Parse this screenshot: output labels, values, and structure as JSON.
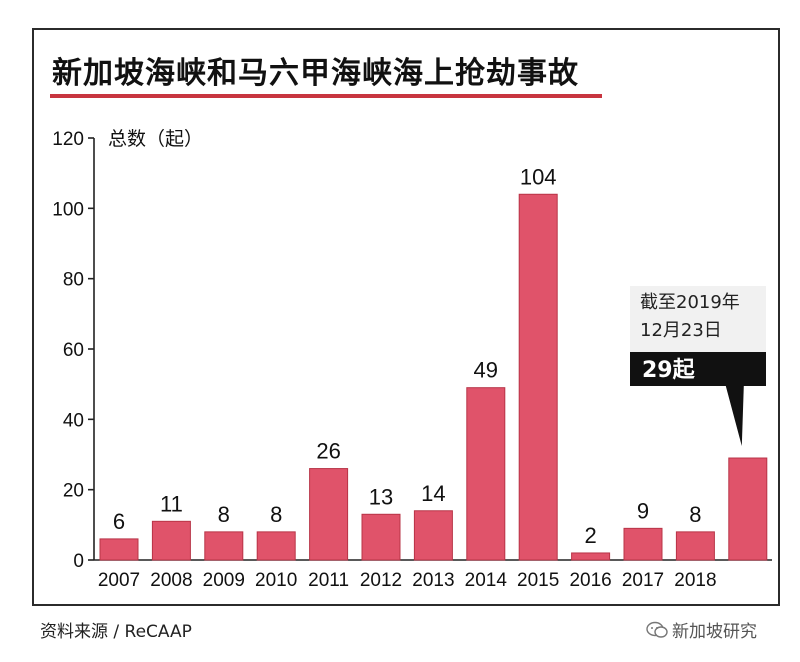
{
  "title": "新加坡海峡和马六甲海峡海上抢劫事故",
  "source": "资料来源 / ReCAAP",
  "watermark": "新加坡研究",
  "colors": {
    "bar": "#e0536a",
    "bar_stroke": "#b83447",
    "accent": "#c8353f",
    "callout_dark": "#111111",
    "callout_light": "#f1f1f1"
  },
  "chart_data": {
    "type": "bar",
    "ylabel": "总数（起）",
    "xlabel": "",
    "ylim": [
      0,
      120
    ],
    "yticks": [
      0,
      20,
      40,
      60,
      80,
      100,
      120
    ],
    "categories": [
      "2007",
      "2008",
      "2009",
      "2010",
      "2011",
      "2012",
      "2013",
      "2014",
      "2015",
      "2016",
      "2017",
      "2018",
      ""
    ],
    "values": [
      6,
      11,
      8,
      8,
      26,
      13,
      14,
      49,
      104,
      2,
      9,
      8,
      29
    ],
    "data_labels": [
      "6",
      "11",
      "8",
      "8",
      "26",
      "13",
      "14",
      "49",
      "104",
      "2",
      "9",
      "8",
      ""
    ],
    "annotation": {
      "line1": "截至2019年",
      "line2": "12月23日",
      "value_text": "29起",
      "target_index": 12
    }
  }
}
